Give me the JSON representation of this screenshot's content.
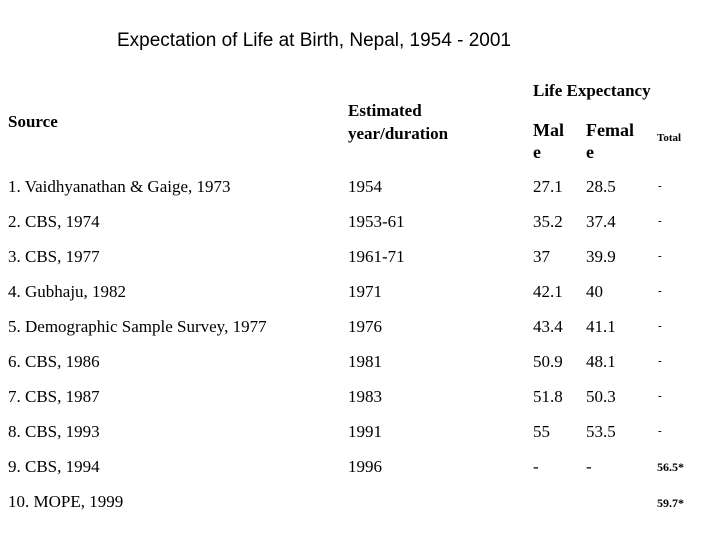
{
  "title": "Expectation of Life at Birth, Nepal, 1954 - 2001",
  "headers": {
    "source": "Source",
    "estimated_line1": "Estimated",
    "estimated_line2": "year/duration",
    "life_expectancy": "Life Expectancy",
    "male_line1": "Mal",
    "male_line2": "e",
    "female_line1": "Femal",
    "female_line2": "e",
    "total": "Total"
  },
  "rows": [
    {
      "source": "1. Vaidhyanathan & Gaige, 1973",
      "year": "1954",
      "male": "27.1",
      "female": "28.5",
      "total": "-"
    },
    {
      "source": "2. CBS, 1974",
      "year": "1953-61",
      "male": "35.2",
      "female": "37.4",
      "total": "-"
    },
    {
      "source": "3. CBS, 1977",
      "year": "1961-71",
      "male": "37",
      "female": "39.9",
      "total": "-"
    },
    {
      "source": "4. Gubhaju, 1982",
      "year": "1971",
      "male": "42.1",
      "female": "40",
      "total": "-"
    },
    {
      "source": "5. Demographic Sample Survey, 1977",
      "year": "1976",
      "male": "43.4",
      "female": "41.1",
      "total": "-"
    },
    {
      "source": "6. CBS, 1986",
      "year": "1981",
      "male": "50.9",
      "female": "48.1",
      "total": "-"
    },
    {
      "source": "7. CBS, 1987",
      "year": "1983",
      "male": "51.8",
      "female": "50.3",
      "total": "-"
    },
    {
      "source": "8. CBS, 1993",
      "year": "1991",
      "male": "55",
      "female": "53.5",
      "total": "-"
    },
    {
      "source": "9. CBS, 1994",
      "year": "1996",
      "male": "-",
      "female": "-",
      "total": "56.5*"
    },
    {
      "source": "10. MOPE, 1999",
      "year": "",
      "male": "",
      "female": "",
      "total": "59.7*"
    }
  ]
}
